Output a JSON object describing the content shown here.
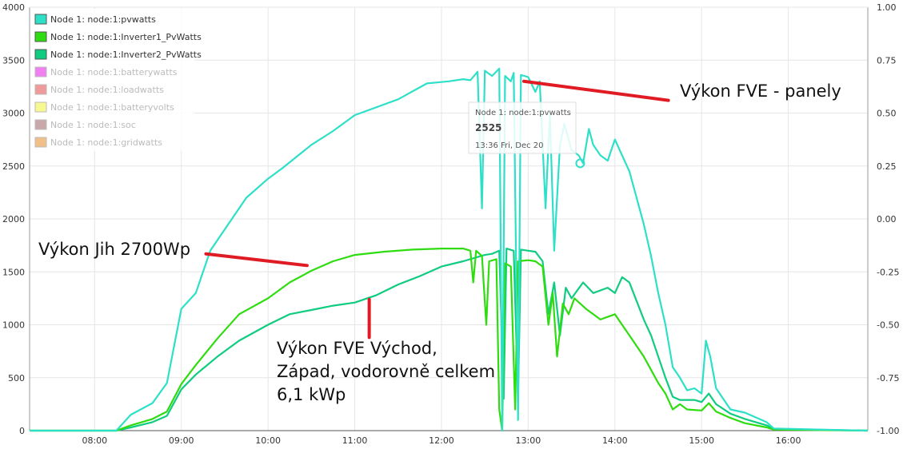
{
  "chart_data": {
    "type": "line",
    "x_unit": "time of day",
    "xlim": [
      "07:15",
      "16:55"
    ],
    "x_ticks": [
      "08:00",
      "09:00",
      "10:00",
      "11:00",
      "12:00",
      "13:00",
      "14:00",
      "15:00",
      "16:00"
    ],
    "ylim_left": [
      0,
      4000
    ],
    "y_ticks_left": [
      "0",
      "500",
      "1000",
      "1500",
      "2000",
      "2500",
      "3000",
      "3500",
      "4000"
    ],
    "ylim_right": [
      -1.0,
      1.0
    ],
    "y_ticks_right": [
      "-1.00",
      "-0.75",
      "-0.50",
      "-0.25",
      "0.00",
      "0.25",
      "0.50",
      "0.75",
      "1.00"
    ],
    "grid": true,
    "legend_position": "top-left",
    "legend": [
      {
        "label": "Node 1: node:1:pvwatts",
        "color": "#2ee0c8",
        "active": true
      },
      {
        "label": "Node 1: node:1:Inverter1_PvWatts",
        "color": "#2fdc10",
        "active": true
      },
      {
        "label": "Node 1: node:1:Inverter2_PvWatts",
        "color": "#10cc80",
        "active": true
      },
      {
        "label": "Node 1: node:1:batterywatts",
        "color": "#f080f0",
        "active": false
      },
      {
        "label": "Node 1: node:1:loadwatts",
        "color": "#f09a9a",
        "active": false
      },
      {
        "label": "Node 1: node:1:batteryvolts",
        "color": "#f8f890",
        "active": false
      },
      {
        "label": "Node 1: node:1:soc",
        "color": "#c8a8a8",
        "active": false
      },
      {
        "label": "Node 1: node:1:gridwatts",
        "color": "#f0c088",
        "active": false
      }
    ],
    "series": [
      {
        "name": "Node 1: node:1:pvwatts",
        "color": "#2ee0c8",
        "points": [
          [
            "07:15",
            0
          ],
          [
            "08:15",
            0
          ],
          [
            "08:25",
            150
          ],
          [
            "08:40",
            260
          ],
          [
            "08:50",
            450
          ],
          [
            "09:00",
            1150
          ],
          [
            "09:10",
            1300
          ],
          [
            "09:20",
            1700
          ],
          [
            "09:30",
            1900
          ],
          [
            "09:45",
            2200
          ],
          [
            "10:00",
            2380
          ],
          [
            "10:10",
            2480
          ],
          [
            "10:30",
            2700
          ],
          [
            "10:45",
            2830
          ],
          [
            "11:00",
            2980
          ],
          [
            "11:30",
            3130
          ],
          [
            "11:50",
            3280
          ],
          [
            "12:05",
            3300
          ],
          [
            "12:15",
            3320
          ],
          [
            "12:20",
            3310
          ],
          [
            "12:25",
            3390
          ],
          [
            "12:28",
            2100
          ],
          [
            "12:30",
            3400
          ],
          [
            "12:35",
            3350
          ],
          [
            "12:40",
            3420
          ],
          [
            "12:42",
            0
          ],
          [
            "12:44",
            3350
          ],
          [
            "12:48",
            3300
          ],
          [
            "12:50",
            3380
          ],
          [
            "12:53",
            100
          ],
          [
            "12:55",
            3360
          ],
          [
            "13:00",
            3340
          ],
          [
            "13:05",
            3200
          ],
          [
            "13:08",
            3300
          ],
          [
            "13:12",
            2100
          ],
          [
            "13:15",
            3000
          ],
          [
            "13:18",
            1700
          ],
          [
            "13:22",
            2700
          ],
          [
            "13:25",
            2900
          ],
          [
            "13:30",
            2650
          ],
          [
            "13:35",
            2600
          ],
          [
            "13:38",
            2525
          ],
          [
            "13:42",
            2850
          ],
          [
            "13:45",
            2700
          ],
          [
            "13:50",
            2600
          ],
          [
            "13:55",
            2550
          ],
          [
            "14:00",
            2750
          ],
          [
            "14:05",
            2600
          ],
          [
            "14:10",
            2450
          ],
          [
            "14:15",
            2200
          ],
          [
            "14:20",
            1950
          ],
          [
            "14:25",
            1650
          ],
          [
            "14:30",
            1300
          ],
          [
            "14:35",
            1000
          ],
          [
            "14:40",
            600
          ],
          [
            "14:45",
            500
          ],
          [
            "14:50",
            380
          ],
          [
            "14:55",
            400
          ],
          [
            "15:00",
            350
          ],
          [
            "15:03",
            850
          ],
          [
            "15:06",
            700
          ],
          [
            "15:10",
            400
          ],
          [
            "15:20",
            200
          ],
          [
            "15:30",
            170
          ],
          [
            "15:45",
            80
          ],
          [
            "15:50",
            20
          ],
          [
            "16:55",
            0
          ]
        ]
      },
      {
        "name": "Node 1: node:1:Inverter1_PvWatts",
        "color": "#2fdc10",
        "points": [
          [
            "07:15",
            0
          ],
          [
            "08:15",
            0
          ],
          [
            "08:25",
            50
          ],
          [
            "08:40",
            110
          ],
          [
            "08:50",
            180
          ],
          [
            "09:00",
            440
          ],
          [
            "09:10",
            620
          ],
          [
            "09:25",
            870
          ],
          [
            "09:40",
            1100
          ],
          [
            "10:00",
            1250
          ],
          [
            "10:15",
            1400
          ],
          [
            "10:30",
            1510
          ],
          [
            "10:45",
            1600
          ],
          [
            "11:00",
            1660
          ],
          [
            "11:20",
            1690
          ],
          [
            "11:40",
            1710
          ],
          [
            "12:00",
            1720
          ],
          [
            "12:15",
            1720
          ],
          [
            "12:20",
            1700
          ],
          [
            "12:22",
            1400
          ],
          [
            "12:24",
            1700
          ],
          [
            "12:28",
            1650
          ],
          [
            "12:31",
            1000
          ],
          [
            "12:33",
            1600
          ],
          [
            "12:38",
            1620
          ],
          [
            "12:40",
            200
          ],
          [
            "12:42",
            0
          ],
          [
            "12:44",
            1580
          ],
          [
            "12:48",
            1550
          ],
          [
            "12:51",
            200
          ],
          [
            "12:53",
            1600
          ],
          [
            "13:00",
            1610
          ],
          [
            "13:05",
            1600
          ],
          [
            "13:10",
            1550
          ],
          [
            "13:14",
            1000
          ],
          [
            "13:17",
            1300
          ],
          [
            "13:20",
            700
          ],
          [
            "13:24",
            1200
          ],
          [
            "13:28",
            1100
          ],
          [
            "13:32",
            1250
          ],
          [
            "13:40",
            1150
          ],
          [
            "13:50",
            1050
          ],
          [
            "14:00",
            1100
          ],
          [
            "14:05",
            1000
          ],
          [
            "14:10",
            900
          ],
          [
            "14:20",
            700
          ],
          [
            "14:30",
            450
          ],
          [
            "14:35",
            350
          ],
          [
            "14:40",
            200
          ],
          [
            "14:45",
            250
          ],
          [
            "14:50",
            200
          ],
          [
            "15:00",
            190
          ],
          [
            "15:05",
            260
          ],
          [
            "15:10",
            180
          ],
          [
            "15:20",
            120
          ],
          [
            "15:30",
            70
          ],
          [
            "15:45",
            30
          ],
          [
            "15:50",
            10
          ],
          [
            "16:55",
            0
          ]
        ]
      },
      {
        "name": "Node 1: node:1:Inverter2_PvWatts",
        "color": "#10cc80",
        "points": [
          [
            "07:15",
            0
          ],
          [
            "08:15",
            0
          ],
          [
            "08:25",
            30
          ],
          [
            "08:40",
            80
          ],
          [
            "08:50",
            140
          ],
          [
            "09:00",
            390
          ],
          [
            "09:10",
            530
          ],
          [
            "09:25",
            700
          ],
          [
            "09:40",
            850
          ],
          [
            "10:00",
            1000
          ],
          [
            "10:15",
            1100
          ],
          [
            "10:30",
            1140
          ],
          [
            "10:45",
            1180
          ],
          [
            "11:00",
            1210
          ],
          [
            "11:15",
            1280
          ],
          [
            "11:30",
            1380
          ],
          [
            "11:45",
            1460
          ],
          [
            "12:00",
            1550
          ],
          [
            "12:15",
            1600
          ],
          [
            "12:25",
            1640
          ],
          [
            "12:30",
            1660
          ],
          [
            "12:35",
            1670
          ],
          [
            "12:40",
            1700
          ],
          [
            "12:43",
            300
          ],
          [
            "12:45",
            1720
          ],
          [
            "12:50",
            1700
          ],
          [
            "12:53",
            300
          ],
          [
            "12:55",
            1710
          ],
          [
            "13:00",
            1700
          ],
          [
            "13:05",
            1690
          ],
          [
            "13:10",
            1600
          ],
          [
            "13:14",
            1100
          ],
          [
            "13:18",
            1400
          ],
          [
            "13:22",
            900
          ],
          [
            "13:26",
            1350
          ],
          [
            "13:30",
            1250
          ],
          [
            "13:38",
            1400
          ],
          [
            "13:45",
            1300
          ],
          [
            "13:55",
            1350
          ],
          [
            "14:00",
            1300
          ],
          [
            "14:05",
            1450
          ],
          [
            "14:10",
            1400
          ],
          [
            "14:20",
            1050
          ],
          [
            "14:25",
            900
          ],
          [
            "14:30",
            700
          ],
          [
            "14:35",
            500
          ],
          [
            "14:40",
            320
          ],
          [
            "14:45",
            290
          ],
          [
            "14:55",
            290
          ],
          [
            "15:00",
            270
          ],
          [
            "15:05",
            350
          ],
          [
            "15:10",
            250
          ],
          [
            "15:20",
            160
          ],
          [
            "15:30",
            110
          ],
          [
            "15:45",
            50
          ],
          [
            "15:50",
            15
          ],
          [
            "16:55",
            0
          ]
        ]
      }
    ],
    "tooltip": {
      "series": "Node 1: node:1:pvwatts",
      "title": "Node 1: node:1:pvwatts",
      "value": "2525",
      "time_label": "13:36 Fri, Dec 20",
      "x": "13:36",
      "y": 2525
    },
    "annotations": [
      {
        "lines": [
          "Výkon FVE - panely"
        ],
        "pointer_from": [
          "12:57",
          3300
        ],
        "pointer_to": [
          "14:37",
          3120
        ]
      },
      {
        "lines": [
          "Výkon Jih 2700Wp"
        ],
        "pointer_from": [
          "09:17",
          1670
        ],
        "pointer_to": [
          "10:27",
          1560
        ]
      },
      {
        "lines": [
          "Výkon FVE Východ,",
          "Západ, vodorovně celkem",
          "6,1 kWp"
        ],
        "pointer_from": [
          "11:10",
          1240
        ],
        "pointer_to": [
          "11:10",
          880
        ]
      }
    ]
  }
}
